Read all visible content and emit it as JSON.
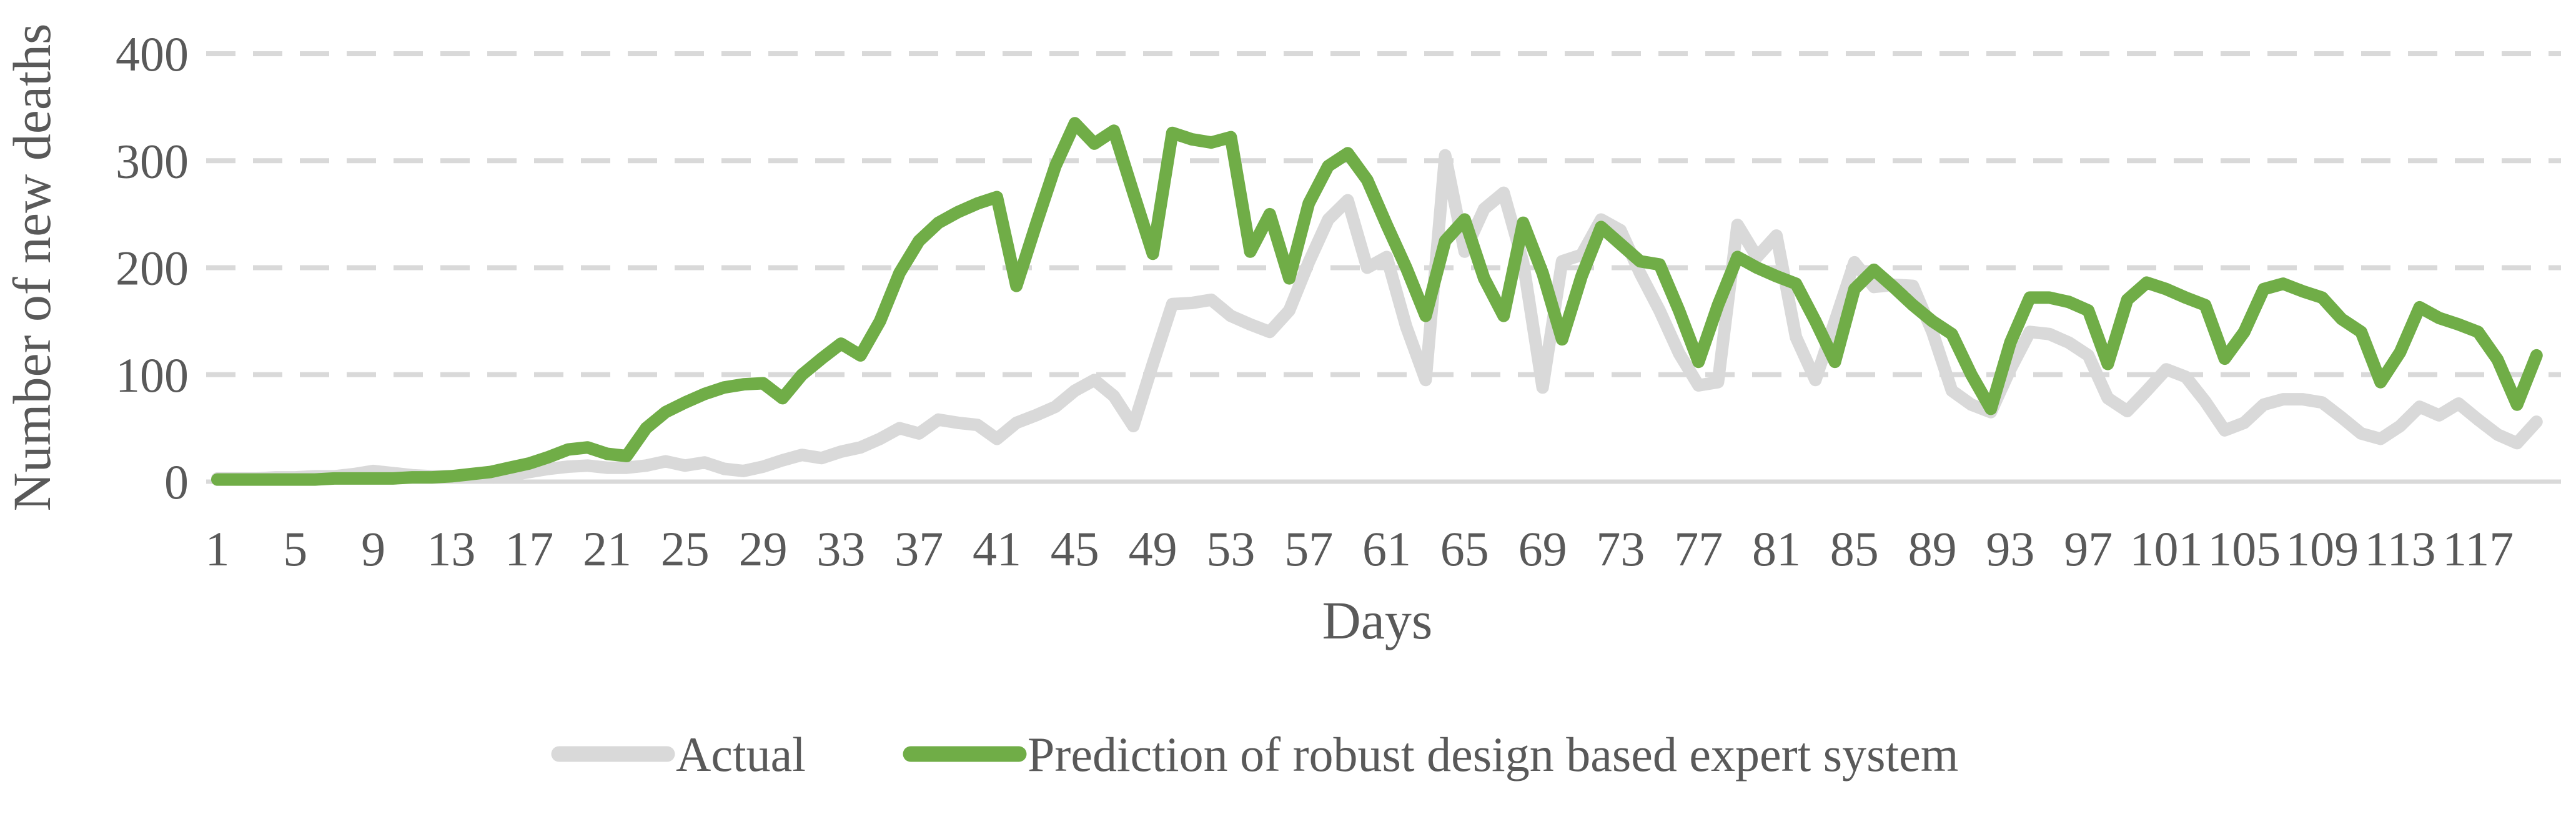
{
  "chart_data": {
    "type": "line",
    "title": "",
    "xlabel": "Days",
    "ylabel": "Number of new deaths",
    "x_range": [
      1,
      120
    ],
    "ylim": [
      0,
      400
    ],
    "grid": "horizontal-dashed",
    "legend_position": "bottom-center",
    "xticks": [
      1,
      5,
      9,
      13,
      17,
      21,
      25,
      29,
      33,
      37,
      41,
      45,
      49,
      53,
      57,
      61,
      65,
      69,
      73,
      77,
      81,
      85,
      89,
      93,
      97,
      101,
      105,
      109,
      113,
      117
    ],
    "yticks": [
      0,
      100,
      200,
      300,
      400
    ],
    "colors": {
      "actual": "#D9D9D9",
      "prediction": "#70AD47",
      "grid": "#D9D9D9",
      "axis": "#D9D9D9",
      "text": "#595959"
    },
    "series": [
      {
        "name": "Actual",
        "color": "#D9D9D9",
        "values": [
          3,
          3,
          3,
          4,
          4,
          5,
          5,
          7,
          10,
          8,
          6,
          5,
          5,
          4,
          4,
          6,
          9,
          12,
          14,
          15,
          13,
          13,
          15,
          19,
          15,
          18,
          12,
          10,
          14,
          20,
          25,
          22,
          28,
          32,
          40,
          50,
          45,
          58,
          55,
          53,
          40,
          55,
          62,
          70,
          85,
          95,
          80,
          52,
          110,
          166,
          167,
          170,
          155,
          147,
          140,
          160,
          205,
          245,
          263,
          200,
          210,
          145,
          95,
          305,
          215,
          255,
          270,
          205,
          88,
          206,
          212,
          245,
          235,
          195,
          160,
          120,
          90,
          93,
          240,
          210,
          230,
          135,
          95,
          150,
          205,
          182,
          184,
          183,
          140,
          85,
          72,
          65,
          105,
          140,
          138,
          130,
          118,
          78,
          66,
          85,
          105,
          98,
          75,
          48,
          55,
          72,
          77,
          77,
          74,
          60,
          45,
          40,
          52,
          70,
          62,
          73,
          58,
          44,
          36,
          56
        ]
      },
      {
        "name": "Prediction of robust design based expert system",
        "color": "#70AD47",
        "values": [
          2,
          2,
          2,
          2,
          2,
          2,
          3,
          3,
          3,
          3,
          4,
          4,
          5,
          7,
          9,
          13,
          17,
          23,
          30,
          32,
          26,
          24,
          50,
          65,
          74,
          82,
          88,
          91,
          92,
          78,
          100,
          115,
          129,
          118,
          150,
          195,
          225,
          242,
          252,
          260,
          266,
          183,
          240,
          295,
          335,
          316,
          328,
          270,
          213,
          326,
          320,
          317,
          322,
          215,
          250,
          190,
          260,
          295,
          307,
          282,
          240,
          200,
          155,
          225,
          245,
          190,
          155,
          242,
          195,
          133,
          192,
          238,
          222,
          206,
          203,
          160,
          112,
          165,
          210,
          200,
          192,
          185,
          150,
          112,
          180,
          198,
          182,
          165,
          150,
          138,
          100,
          68,
          130,
          172,
          172,
          168,
          160,
          110,
          170,
          186,
          180,
          172,
          165,
          115,
          140,
          180,
          185,
          178,
          172,
          152,
          140,
          93,
          121,
          163,
          153,
          147,
          140,
          114,
          72,
          118
        ]
      }
    ]
  }
}
